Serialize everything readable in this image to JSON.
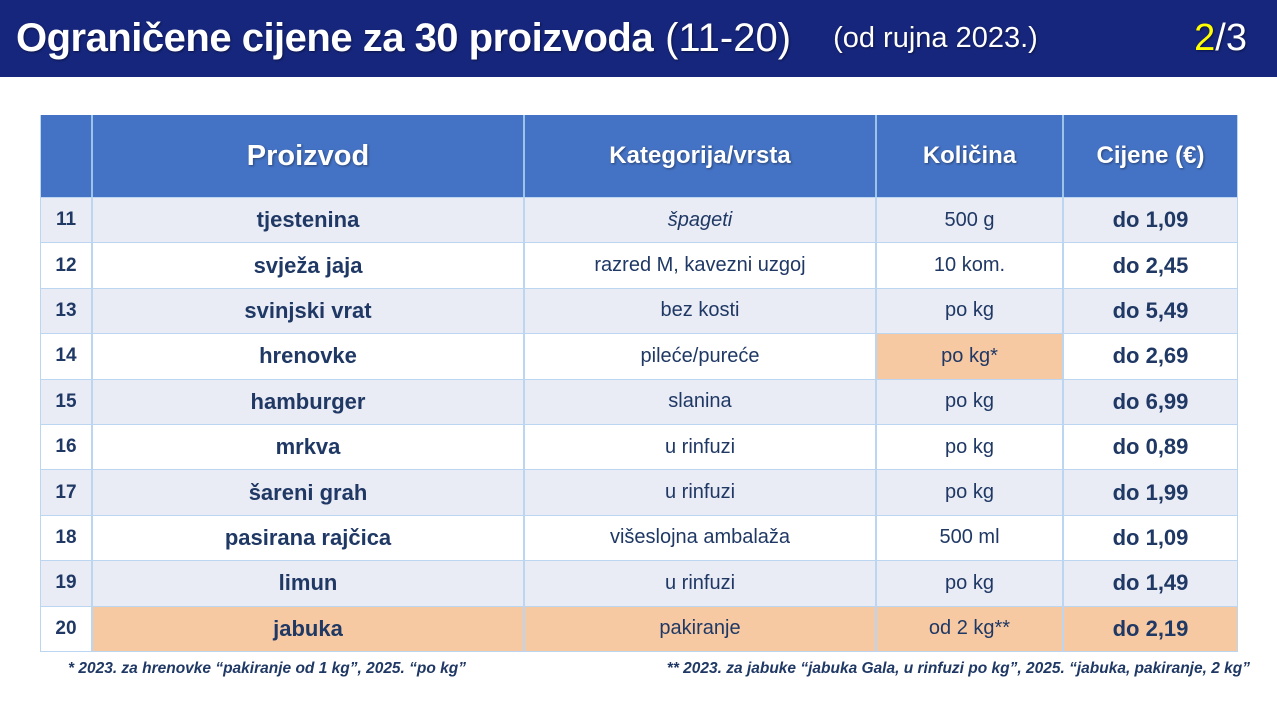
{
  "title": {
    "main": "Ograničene cijene za 30 proizvoda",
    "range": "(11-20)",
    "since": "(od rujna 2023.)",
    "page_current": "2",
    "page_total": "/3"
  },
  "table": {
    "headers": [
      "",
      "Proizvod",
      "Kategorija/vrsta",
      "Količina",
      "Cijene (€)"
    ],
    "rows": [
      {
        "num": "11",
        "product": "tjestenina",
        "category": "špageti",
        "category_italic": true,
        "quantity": "500 g",
        "price": "do 1,09",
        "qty_highlight": false,
        "row_highlight": false
      },
      {
        "num": "12",
        "product": "svježa jaja",
        "category": "razred M, kavezni uzgoj",
        "category_italic": false,
        "quantity": "10 kom.",
        "price": "do 2,45",
        "qty_highlight": false,
        "row_highlight": false
      },
      {
        "num": "13",
        "product": "svinjski vrat",
        "category": "bez kosti",
        "category_italic": false,
        "quantity": "po kg",
        "price": "do 5,49",
        "qty_highlight": false,
        "row_highlight": false
      },
      {
        "num": "14",
        "product": "hrenovke",
        "category": "pileće/pureće",
        "category_italic": false,
        "quantity": "po kg*",
        "price": "do 2,69",
        "qty_highlight": true,
        "row_highlight": false
      },
      {
        "num": "15",
        "product": "hamburger",
        "category": "slanina",
        "category_italic": false,
        "quantity": "po kg",
        "price": "do 6,99",
        "qty_highlight": false,
        "row_highlight": false
      },
      {
        "num": "16",
        "product": "mrkva",
        "category": "u rinfuzi",
        "category_italic": false,
        "quantity": "po kg",
        "price": "do 0,89",
        "qty_highlight": false,
        "row_highlight": false
      },
      {
        "num": "17",
        "product": "šareni grah",
        "category": "u rinfuzi",
        "category_italic": false,
        "quantity": "po kg",
        "price": "do 1,99",
        "qty_highlight": false,
        "row_highlight": false
      },
      {
        "num": "18",
        "product": "pasirana rajčica",
        "category": "višeslojna ambalaža",
        "category_italic": false,
        "quantity": "500 ml",
        "price": "do 1,09",
        "qty_highlight": false,
        "row_highlight": false
      },
      {
        "num": "19",
        "product": "limun",
        "category": "u rinfuzi",
        "category_italic": false,
        "quantity": "po kg",
        "price": "do 1,49",
        "qty_highlight": false,
        "row_highlight": false
      },
      {
        "num": "20",
        "product": "jabuka",
        "category": "pakiranje",
        "category_italic": false,
        "quantity": "od 2 kg**",
        "price": "do 2,19",
        "qty_highlight": false,
        "row_highlight": true
      }
    ]
  },
  "footnotes": {
    "left": "* 2023. za hrenovke “pakiranje od 1 kg”, 2025. “po kg”",
    "right": "** 2023. za jabuke “jabuka Gala, u rinfuzi po kg”, 2025. “jabuka, pakiranje, 2 kg”"
  },
  "colors": {
    "title_bar_bg": "#16267D",
    "page_number_accent": "#FFFF00",
    "table_header_bg": "#4472C4",
    "row_alt_bg": "#E9EBF5",
    "row_white_bg": "#FFFFFF",
    "highlight_orange": "#F7C9A3",
    "grid_line": "#BCD5F0",
    "text_navy": "#1F3864"
  }
}
